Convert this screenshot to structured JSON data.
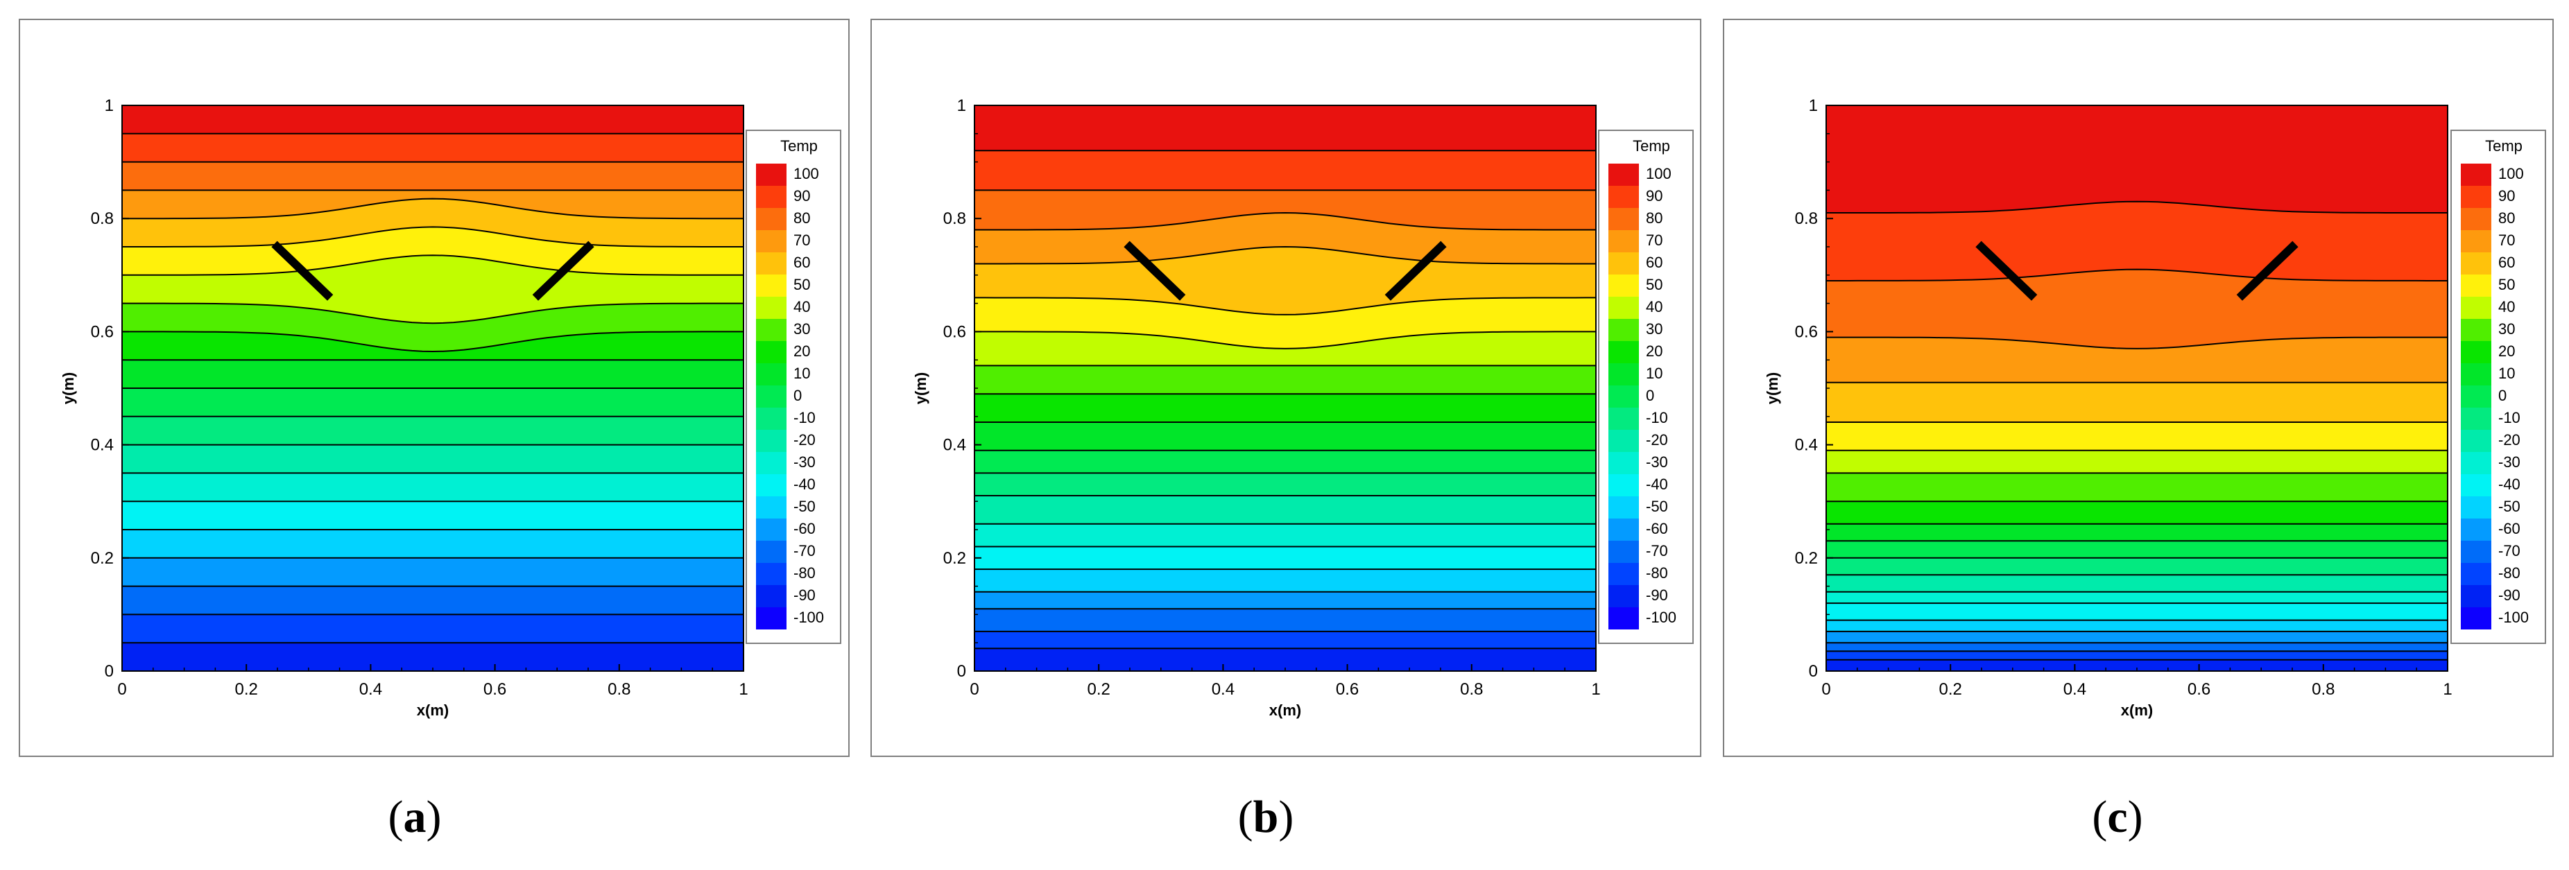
{
  "chart_data": [
    {
      "type": "contour",
      "caption_open": "(",
      "caption_letter": "a",
      "caption_close": ")",
      "xlabel": "x(m)",
      "ylabel": "y(m)",
      "xlim": [
        0,
        1
      ],
      "ylim": [
        0,
        1
      ],
      "xticks": [
        "0",
        "0.2",
        "0.4",
        "0.6",
        "0.8",
        "1"
      ],
      "yticks": [
        "0",
        "0.2",
        "0.4",
        "0.6",
        "0.8",
        "1"
      ],
      "legend_title": "Temp",
      "legend_values": [
        "100",
        "90",
        "80",
        "70",
        "60",
        "50",
        "40",
        "30",
        "20",
        "10",
        "0",
        "-10",
        "-20",
        "-30",
        "-40",
        "-50",
        "-60",
        "-70",
        "-80",
        "-90",
        "-100"
      ],
      "plate_left": [
        [
          0.245,
          0.755
        ],
        [
          0.335,
          0.66
        ]
      ],
      "plate_right": [
        [
          0.665,
          0.66
        ],
        [
          0.755,
          0.755
        ]
      ],
      "band_edges_y": [
        1.0,
        0.95,
        0.9,
        0.85,
        0.8,
        0.75,
        0.7,
        0.65,
        0.6,
        0.55,
        0.5,
        0.45,
        0.4,
        0.35,
        0.3,
        0.25,
        0.2,
        0.15,
        0.1,
        0.05,
        0.0
      ],
      "band_temps": [
        100,
        90,
        80,
        70,
        60,
        50,
        40,
        30,
        20,
        10,
        0,
        -10,
        -20,
        -30,
        -40,
        -50,
        -60,
        -70,
        -80,
        -90
      ],
      "bump_amplitude": 0.035
    },
    {
      "type": "contour",
      "caption_open": "(",
      "caption_letter": "b",
      "caption_close": ")",
      "xlabel": "x(m)",
      "ylabel": "y(m)",
      "xlim": [
        0,
        1
      ],
      "ylim": [
        0,
        1
      ],
      "xticks": [
        "0",
        "0.2",
        "0.4",
        "0.6",
        "0.8",
        "1"
      ],
      "yticks": [
        "0",
        "0.2",
        "0.4",
        "0.6",
        "0.8",
        "1"
      ],
      "legend_title": "Temp",
      "legend_values": [
        "100",
        "90",
        "80",
        "70",
        "60",
        "50",
        "40",
        "30",
        "20",
        "10",
        "0",
        "-10",
        "-20",
        "-30",
        "-40",
        "-50",
        "-60",
        "-70",
        "-80",
        "-90",
        "-100"
      ],
      "plate_left": [
        [
          0.245,
          0.755
        ],
        [
          0.335,
          0.66
        ]
      ],
      "plate_right": [
        [
          0.665,
          0.66
        ],
        [
          0.755,
          0.755
        ]
      ],
      "band_edges_y": [
        1.0,
        0.92,
        0.85,
        0.78,
        0.72,
        0.66,
        0.6,
        0.54,
        0.49,
        0.44,
        0.39,
        0.35,
        0.31,
        0.26,
        0.22,
        0.18,
        0.14,
        0.11,
        0.07,
        0.04,
        0.0
      ],
      "band_temps": [
        100,
        90,
        80,
        70,
        60,
        50,
        40,
        30,
        20,
        10,
        0,
        -10,
        -20,
        -30,
        -40,
        -50,
        -60,
        -70,
        -80,
        -90
      ],
      "bump_amplitude": 0.03
    },
    {
      "type": "contour",
      "caption_open": "(",
      "caption_letter": "c",
      "caption_close": ")",
      "xlabel": "x(m)",
      "ylabel": "y(m)",
      "xlim": [
        0,
        1
      ],
      "ylim": [
        0,
        1
      ],
      "xticks": [
        "0",
        "0.2",
        "0.4",
        "0.6",
        "0.8",
        "1"
      ],
      "yticks": [
        "0",
        "0.2",
        "0.4",
        "0.6",
        "0.8",
        "1"
      ],
      "legend_title": "Temp",
      "legend_values": [
        "100",
        "90",
        "80",
        "70",
        "60",
        "50",
        "40",
        "30",
        "20",
        "10",
        "0",
        "-10",
        "-20",
        "-30",
        "-40",
        "-50",
        "-60",
        "-70",
        "-80",
        "-90",
        "-100"
      ],
      "plate_left": [
        [
          0.245,
          0.755
        ],
        [
          0.335,
          0.66
        ]
      ],
      "plate_right": [
        [
          0.665,
          0.66
        ],
        [
          0.755,
          0.755
        ]
      ],
      "band_edges_y": [
        1.0,
        0.81,
        0.69,
        0.59,
        0.51,
        0.44,
        0.39,
        0.35,
        0.3,
        0.26,
        0.23,
        0.2,
        0.17,
        0.14,
        0.12,
        0.09,
        0.07,
        0.05,
        0.035,
        0.02,
        0.0
      ],
      "band_temps": [
        100,
        90,
        80,
        70,
        60,
        50,
        40,
        30,
        20,
        10,
        0,
        -10,
        -20,
        -30,
        -40,
        -50,
        -60,
        -70,
        -80,
        -90
      ],
      "bump_amplitude": 0.02
    }
  ],
  "colors": {
    "palette": [
      "#e8120f",
      "#fd3e0c",
      "#fc6d0d",
      "#fe9a0e",
      "#ffc20b",
      "#fff10b",
      "#c1fd00",
      "#50ee00",
      "#09e500",
      "#01e629",
      "#00ea52",
      "#03ea80",
      "#00ebab",
      "#00f0d3",
      "#00f3f4",
      "#02d3ff",
      "#049bff",
      "#006cf9",
      "#0144ff",
      "#0022f4",
      "#0d00ff"
    ],
    "contour_line": "#000000",
    "plate": "#000000",
    "frame": "#7f7f7f"
  }
}
